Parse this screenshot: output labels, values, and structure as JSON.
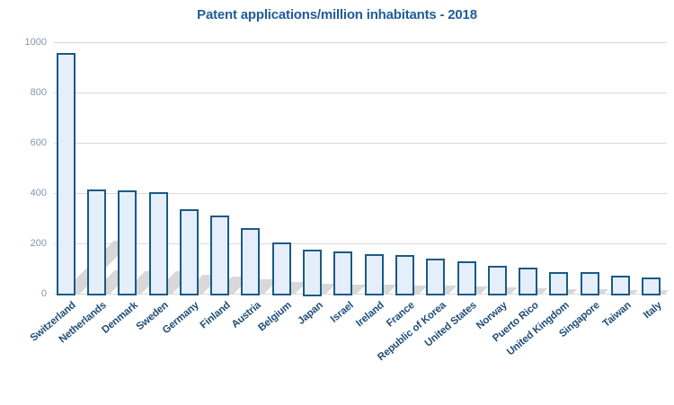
{
  "chart_data": {
    "type": "bar",
    "title": "Patent applications/million inhabitants - 2018",
    "xlabel": "",
    "ylabel": "",
    "categories": [
      "Switzerland",
      "Netherlands",
      "Denmark",
      "Sweden",
      "Germany",
      "Finland",
      "Austria",
      "Belgium",
      "Japan",
      "Israel",
      "Ireland",
      "France",
      "Republic of Korea",
      "United States",
      "Norway",
      "Puerto Rico",
      "United Kingdom",
      "Singapore",
      "Taiwan",
      "Italy"
    ],
    "values": [
      956,
      416,
      411,
      403,
      334,
      310,
      262,
      203,
      175,
      168,
      157,
      154,
      140,
      130,
      110,
      105,
      86,
      84,
      70,
      65
    ],
    "ylim": [
      0,
      1000
    ],
    "yticks": [
      0,
      200,
      400,
      600,
      800,
      1000
    ],
    "grid": true,
    "legend": false,
    "bar_style": "3d-perspective-shadow",
    "colors": {
      "title": "#1F5C99",
      "x_label": "#1F4E79",
      "y_label": "#8496B0",
      "gridline": "#D9D9D9",
      "bar_fill": "#E5EFFB",
      "bar_border": "#1B5A86",
      "shadow": "#CBCBCB"
    }
  }
}
